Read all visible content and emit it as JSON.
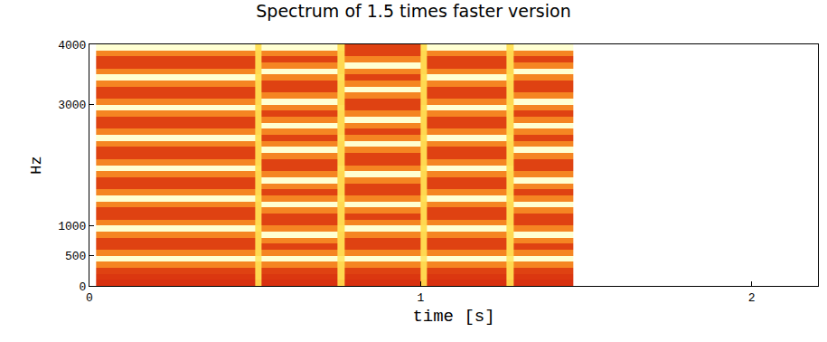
{
  "chart_data": {
    "type": "heatmap",
    "title": "Spectrum of 1.5 times faster version",
    "x_label": "time [s]",
    "y_label": "Hz",
    "xlim": [
      0,
      2.2
    ],
    "xticks": [
      0,
      1,
      2
    ],
    "ylim": [
      0,
      4000
    ],
    "yticks": [
      0,
      500,
      1000,
      3000,
      4000
    ],
    "grid": false,
    "x": [
      0.02,
      0.5,
      0.52,
      0.75,
      0.77,
      1.0,
      1.02,
      1.26,
      1.28,
      1.46
    ],
    "y": [
      0,
      100,
      200,
      300,
      400,
      500,
      600,
      700,
      800,
      900,
      1000,
      1100,
      1200,
      1300,
      1400,
      1500,
      1600,
      1700,
      1800,
      1900,
      2000,
      2100,
      2200,
      2300,
      2400,
      2500,
      2600,
      2700,
      2800,
      2900,
      3000,
      3100,
      3200,
      3300,
      3400,
      3500,
      3600,
      3700,
      3800,
      3900,
      4000
    ],
    "z": [
      [
        40,
        78,
        40,
        78,
        40,
        78,
        40,
        78,
        40
      ],
      [
        42,
        80,
        42,
        80,
        42,
        80,
        42,
        80,
        42
      ],
      [
        45,
        80,
        45,
        80,
        45,
        80,
        45,
        80,
        45
      ],
      [
        62,
        80,
        62,
        80,
        62,
        80,
        62,
        80,
        62
      ],
      [
        95,
        85,
        95,
        85,
        95,
        85,
        95,
        85,
        95
      ],
      [
        62,
        80,
        62,
        80,
        62,
        80,
        62,
        80,
        62
      ],
      [
        45,
        80,
        45,
        80,
        45,
        80,
        45,
        80,
        45
      ],
      [
        45,
        80,
        62,
        80,
        45,
        80,
        45,
        80,
        62
      ],
      [
        62,
        80,
        95,
        80,
        62,
        80,
        62,
        80,
        95
      ],
      [
        95,
        82,
        62,
        82,
        95,
        82,
        95,
        82,
        62
      ],
      [
        62,
        80,
        45,
        80,
        62,
        80,
        62,
        80,
        45
      ],
      [
        45,
        80,
        45,
        80,
        45,
        80,
        45,
        80,
        45
      ],
      [
        45,
        80,
        62,
        80,
        62,
        80,
        45,
        80,
        62
      ],
      [
        62,
        80,
        95,
        80,
        95,
        80,
        62,
        80,
        95
      ],
      [
        95,
        82,
        62,
        82,
        62,
        82,
        95,
        82,
        62
      ],
      [
        62,
        80,
        45,
        80,
        45,
        80,
        62,
        80,
        45
      ],
      [
        45,
        80,
        62,
        80,
        45,
        80,
        45,
        80,
        62
      ],
      [
        45,
        80,
        95,
        80,
        62,
        80,
        45,
        80,
        95
      ],
      [
        62,
        80,
        62,
        80,
        95,
        80,
        62,
        80,
        62
      ],
      [
        95,
        82,
        45,
        82,
        62,
        82,
        95,
        82,
        45
      ],
      [
        62,
        80,
        45,
        80,
        45,
        80,
        62,
        80,
        45
      ],
      [
        45,
        80,
        62,
        80,
        45,
        80,
        45,
        80,
        62
      ],
      [
        45,
        80,
        95,
        80,
        62,
        80,
        45,
        80,
        95
      ],
      [
        62,
        80,
        62,
        80,
        95,
        80,
        62,
        80,
        62
      ],
      [
        95,
        82,
        45,
        82,
        62,
        82,
        95,
        82,
        45
      ],
      [
        62,
        80,
        62,
        80,
        45,
        80,
        62,
        80,
        62
      ],
      [
        45,
        80,
        95,
        80,
        62,
        80,
        45,
        80,
        95
      ],
      [
        45,
        80,
        62,
        80,
        95,
        80,
        45,
        80,
        62
      ],
      [
        62,
        80,
        45,
        80,
        62,
        80,
        62,
        80,
        45
      ],
      [
        95,
        82,
        62,
        82,
        45,
        82,
        95,
        82,
        62
      ],
      [
        62,
        80,
        95,
        80,
        45,
        80,
        62,
        80,
        95
      ],
      [
        45,
        80,
        62,
        80,
        62,
        80,
        45,
        80,
        62
      ],
      [
        45,
        80,
        45,
        80,
        95,
        80,
        45,
        80,
        45
      ],
      [
        62,
        80,
        45,
        80,
        62,
        80,
        62,
        80,
        45
      ],
      [
        95,
        82,
        62,
        82,
        45,
        82,
        95,
        82,
        62
      ],
      [
        62,
        80,
        95,
        80,
        62,
        80,
        62,
        80,
        95
      ],
      [
        45,
        80,
        62,
        80,
        95,
        80,
        45,
        80,
        62
      ],
      [
        45,
        80,
        45,
        80,
        62,
        80,
        45,
        80,
        45
      ],
      [
        62,
        80,
        62,
        80,
        45,
        80,
        62,
        80,
        62
      ],
      [
        95,
        82,
        95,
        82,
        45,
        82,
        95,
        82,
        95
      ]
    ]
  }
}
